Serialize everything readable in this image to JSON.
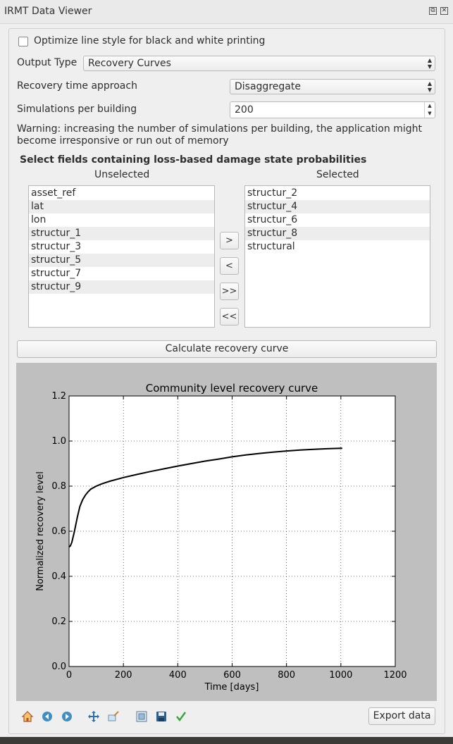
{
  "window": {
    "title": "IRMT Data Viewer",
    "float_glyph": "⧉",
    "close_glyph": "✕"
  },
  "options": {
    "bw_checkbox_label": "Optimize line style for black and white printing",
    "bw_checked": false,
    "output_type_label": "Output Type",
    "output_type_value": "Recovery Curves",
    "recovery_label": "Recovery time approach",
    "recovery_value": "Disaggregate",
    "simulations_label": "Simulations per building",
    "simulations_value": "200",
    "warning": "Warning: increasing the number of simulations per building, the application might become irresponsive or run out of memory"
  },
  "fields": {
    "heading": "Select fields containing loss-based damage state probabilities",
    "unselected_header": "Unselected",
    "selected_header": "Selected",
    "unselected": [
      "asset_ref",
      "lat",
      "lon",
      "structur_1",
      "structur_3",
      "structur_5",
      "structur_7",
      "structur_9"
    ],
    "selected": [
      "structur_2",
      "structur_4",
      "structur_6",
      "structur_8",
      "structural"
    ],
    "buttons": [
      ">",
      "<",
      ">>",
      "<<"
    ]
  },
  "calc_button": "Calculate recovery curve",
  "chart_data": {
    "type": "line",
    "title": "Community level recovery curve",
    "xlabel": "Time [days]",
    "ylabel": "Normalized recovery level",
    "xlim": [
      0,
      1200
    ],
    "ylim": [
      0.0,
      1.2
    ],
    "xticks": [
      "0",
      "200",
      "400",
      "600",
      "800",
      "1000",
      "1200"
    ],
    "yticks": [
      "0.0",
      "0.2",
      "0.4",
      "0.6",
      "0.8",
      "1.0",
      "1.2"
    ],
    "grid": true,
    "series": [
      {
        "x": [
          0,
          5,
          10,
          20,
          30,
          40,
          50,
          60,
          70,
          80,
          100,
          120,
          150,
          200,
          250,
          300,
          350,
          400,
          450,
          500,
          550,
          600,
          650,
          700,
          750,
          800,
          850,
          900,
          950,
          1000,
          1005
        ],
        "y": [
          0.53,
          0.535,
          0.55,
          0.6,
          0.66,
          0.71,
          0.74,
          0.76,
          0.775,
          0.787,
          0.8,
          0.81,
          0.822,
          0.838,
          0.852,
          0.865,
          0.877,
          0.889,
          0.9,
          0.911,
          0.92,
          0.93,
          0.938,
          0.945,
          0.951,
          0.956,
          0.96,
          0.963,
          0.966,
          0.968,
          0.968
        ]
      }
    ]
  },
  "toolbar": {
    "icons": [
      "home-icon",
      "back-icon",
      "forward-icon",
      "pan-icon",
      "zoom-icon",
      "subplots-icon",
      "save-icon",
      "edit-check-icon"
    ],
    "export_label": "Export data"
  }
}
